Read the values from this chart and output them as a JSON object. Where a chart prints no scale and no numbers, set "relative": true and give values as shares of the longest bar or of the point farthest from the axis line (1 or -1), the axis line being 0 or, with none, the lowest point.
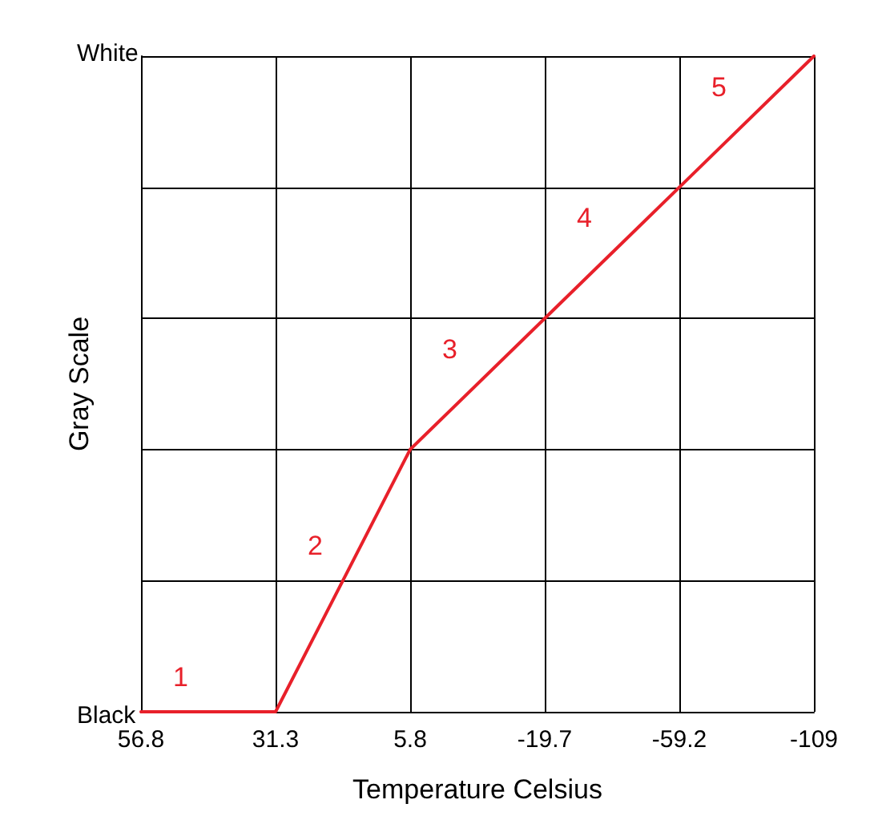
{
  "chart_data": {
    "type": "line",
    "xlabel": "Temperature Celsius",
    "ylabel": "Gray Scale",
    "relative": true,
    "categories": [
      "56.8",
      "31.3",
      "5.8",
      "-19.7",
      "-59.2",
      "-109"
    ],
    "series": [
      {
        "color": "#e8202a",
        "values": [
          0,
          0,
          0.4,
          0.6,
          0.8,
          1
        ]
      }
    ],
    "annotations": [
      "Black",
      "White",
      "1",
      "2",
      "3",
      "4",
      "5"
    ],
    "grid": true,
    "marker": "none",
    "line_style": "solid"
  }
}
